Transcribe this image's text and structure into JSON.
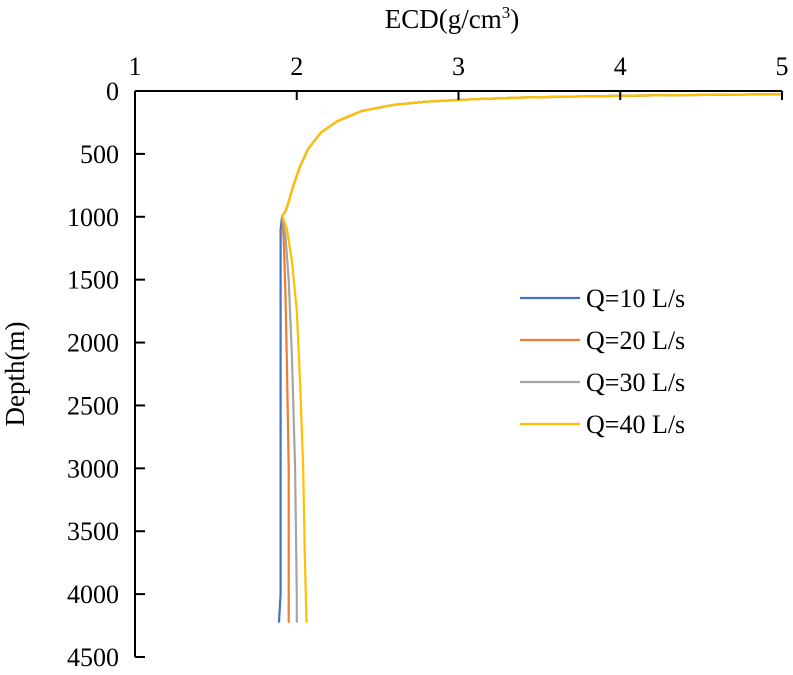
{
  "chart_data": {
    "type": "line",
    "xlabel_main": "ECD(g/cm",
    "xlabel_sup": "3",
    "xlabel_close": ")",
    "ylabel": "Depth(m)",
    "xlim": [
      1,
      5
    ],
    "ylim": [
      0,
      4500
    ],
    "y_inverted": true,
    "x_axis_position": "top",
    "xticks": [
      "1",
      "2",
      "3",
      "4",
      "5"
    ],
    "yticks": [
      "0",
      "500",
      "1000",
      "1500",
      "2000",
      "2500",
      "3000",
      "3500",
      "4000",
      "4500"
    ],
    "legend_position": "right",
    "series": [
      {
        "name": "Q=10 L/s",
        "color": "#4472C4",
        "points": [
          [
            5.0,
            25
          ],
          [
            4.6,
            30
          ],
          [
            4.2,
            35
          ],
          [
            3.8,
            42
          ],
          [
            3.4,
            52
          ],
          [
            3.1,
            65
          ],
          [
            2.8,
            85
          ],
          [
            2.6,
            110
          ],
          [
            2.4,
            160
          ],
          [
            2.25,
            240
          ],
          [
            2.15,
            330
          ],
          [
            2.07,
            460
          ],
          [
            2.02,
            600
          ],
          [
            1.98,
            750
          ],
          [
            1.95,
            880
          ],
          [
            1.93,
            960
          ],
          [
            1.91,
            990
          ],
          [
            1.9,
            1100
          ],
          [
            1.9,
            2000
          ],
          [
            1.9,
            3000
          ],
          [
            1.9,
            4000
          ],
          [
            1.89,
            4220
          ]
        ]
      },
      {
        "name": "Q=20 L/s",
        "color": "#ED7D31",
        "points": [
          [
            5.0,
            25
          ],
          [
            4.6,
            30
          ],
          [
            4.2,
            35
          ],
          [
            3.8,
            42
          ],
          [
            3.4,
            52
          ],
          [
            3.1,
            65
          ],
          [
            2.8,
            85
          ],
          [
            2.6,
            110
          ],
          [
            2.4,
            160
          ],
          [
            2.25,
            240
          ],
          [
            2.15,
            330
          ],
          [
            2.07,
            460
          ],
          [
            2.02,
            600
          ],
          [
            1.98,
            750
          ],
          [
            1.95,
            880
          ],
          [
            1.93,
            960
          ],
          [
            1.91,
            990
          ],
          [
            1.92,
            1200
          ],
          [
            1.93,
            1600
          ],
          [
            1.94,
            2200
          ],
          [
            1.95,
            3000
          ],
          [
            1.95,
            4000
          ],
          [
            1.95,
            4220
          ]
        ]
      },
      {
        "name": "Q=30 L/s",
        "color": "#A5A5A5",
        "points": [
          [
            5.0,
            25
          ],
          [
            4.6,
            30
          ],
          [
            4.2,
            35
          ],
          [
            3.8,
            42
          ],
          [
            3.4,
            52
          ],
          [
            3.1,
            65
          ],
          [
            2.8,
            85
          ],
          [
            2.6,
            110
          ],
          [
            2.4,
            160
          ],
          [
            2.25,
            240
          ],
          [
            2.15,
            330
          ],
          [
            2.07,
            460
          ],
          [
            2.02,
            600
          ],
          [
            1.98,
            750
          ],
          [
            1.95,
            880
          ],
          [
            1.93,
            960
          ],
          [
            1.91,
            990
          ],
          [
            1.93,
            1150
          ],
          [
            1.95,
            1500
          ],
          [
            1.97,
            2100
          ],
          [
            1.99,
            3000
          ],
          [
            2.0,
            4000
          ],
          [
            2.0,
            4220
          ]
        ]
      },
      {
        "name": "Q=40 L/s",
        "color": "#FFC000",
        "points": [
          [
            5.0,
            25
          ],
          [
            4.6,
            30
          ],
          [
            4.2,
            35
          ],
          [
            3.8,
            42
          ],
          [
            3.4,
            52
          ],
          [
            3.1,
            65
          ],
          [
            2.8,
            85
          ],
          [
            2.6,
            110
          ],
          [
            2.4,
            160
          ],
          [
            2.25,
            240
          ],
          [
            2.15,
            330
          ],
          [
            2.07,
            460
          ],
          [
            2.02,
            600
          ],
          [
            1.98,
            750
          ],
          [
            1.95,
            880
          ],
          [
            1.93,
            960
          ],
          [
            1.91,
            990
          ],
          [
            1.94,
            1100
          ],
          [
            1.97,
            1350
          ],
          [
            2.0,
            1750
          ],
          [
            2.02,
            2300
          ],
          [
            2.04,
            3000
          ],
          [
            2.05,
            3700
          ],
          [
            2.06,
            4220
          ]
        ]
      }
    ]
  }
}
